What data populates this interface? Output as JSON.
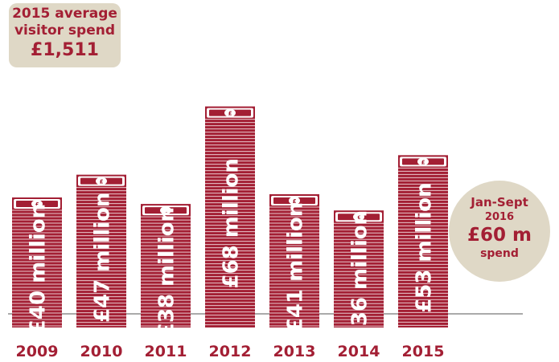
{
  "callout_top": {
    "line1": "2015 average",
    "line2": "visitor spend",
    "value": "£1,511"
  },
  "callout_circle": {
    "line1": "Jan-Sept",
    "line2": "2016",
    "value": "£60 m",
    "line4": "spend"
  },
  "colors": {
    "stack": "#a31f34",
    "callout_bg": "#dfd8c6",
    "year_text": "#a31f34",
    "axis": "#777777"
  },
  "chart_data": {
    "type": "bar",
    "title": "",
    "xlabel": "",
    "ylabel": "",
    "unit": "£ million",
    "categories": [
      "2009",
      "2010",
      "2011",
      "2012",
      "2013",
      "2014",
      "2015"
    ],
    "values": [
      40,
      47,
      38,
      68,
      41,
      36,
      53
    ],
    "value_labels": [
      "£40 million",
      "£47 million",
      "£38 million",
      "£68 million",
      "£41 million",
      "£36 million",
      "£53 million"
    ]
  }
}
